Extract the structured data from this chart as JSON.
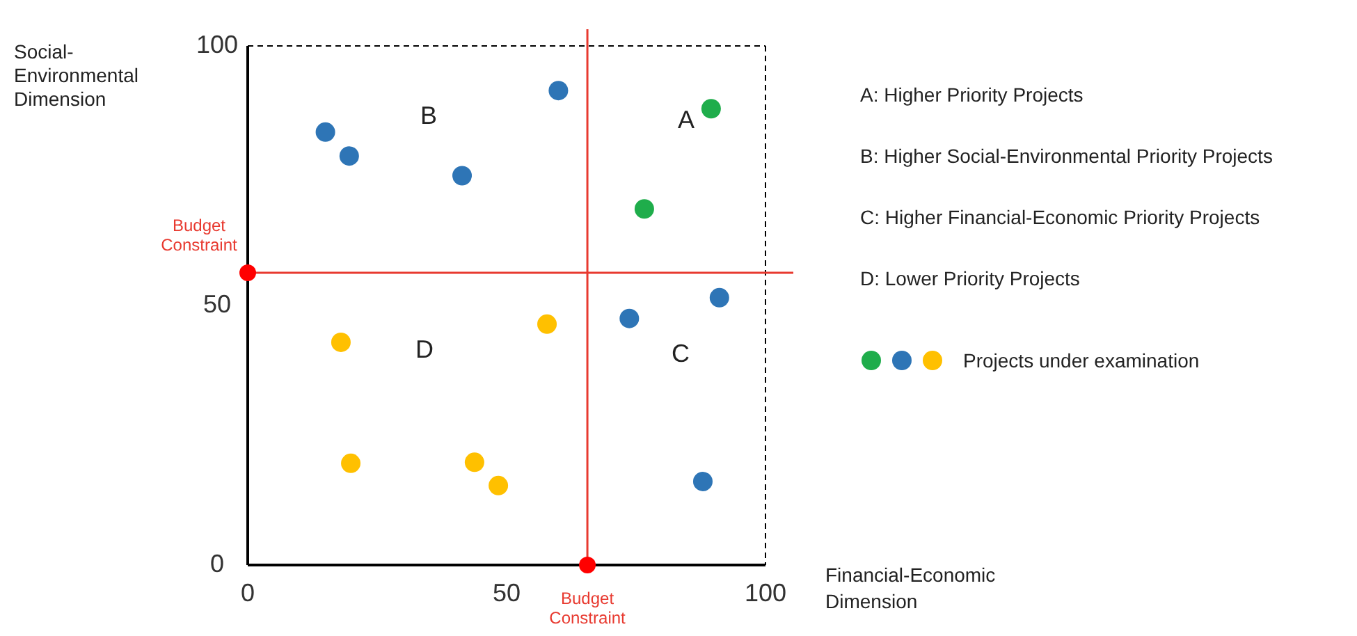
{
  "chart_data": {
    "type": "scatter",
    "xlabel": "Financial-Economic Dimension",
    "ylabel": "Social-Environmental Dimension",
    "xlim": [
      0,
      100
    ],
    "ylim": [
      0,
      100
    ],
    "xticks": [
      0,
      50,
      100
    ],
    "yticks": [
      0,
      50,
      100
    ],
    "grid": false,
    "legend": "right",
    "marker": "circle",
    "series": [
      {
        "name": "Projects under examination",
        "x": [
          15,
          19.6,
          41.4,
          60,
          73.7,
          91.1,
          87.9,
          89.5,
          76.6,
          18,
          57.8,
          19.9,
          43.8,
          48.4
        ],
        "values": [
          83.4,
          78.8,
          75,
          91.4,
          47.5,
          51.5,
          16.1,
          87.9,
          68.6,
          42.9,
          46.4,
          19.6,
          19.8,
          15.3
        ],
        "colors": [
          "#2e75b6",
          "#2e75b6",
          "#2e75b6",
          "#2e75b6",
          "#2e75b6",
          "#2e75b6",
          "#2e75b6",
          "#1fad4b",
          "#1fad4b",
          "#ffc000",
          "#ffc000",
          "#ffc000",
          "#ffc000",
          "#ffc000"
        ]
      }
    ],
    "ref_lines": [
      {
        "axis": "x",
        "value": 65.6,
        "label": "Budget Constraint",
        "color": "#e8392f"
      },
      {
        "axis": "y",
        "value": 56.3,
        "label": "Budget Constraint",
        "color": "#e8392f"
      }
    ],
    "annotations": [
      "A",
      "B",
      "C",
      "D",
      "A: Higher Priority Projects",
      "B: Higher Social-Environmental Priority Projects",
      "C: Higher Financial-Economic Priority Projects",
      "D: Lower Priority Projects"
    ]
  }
}
